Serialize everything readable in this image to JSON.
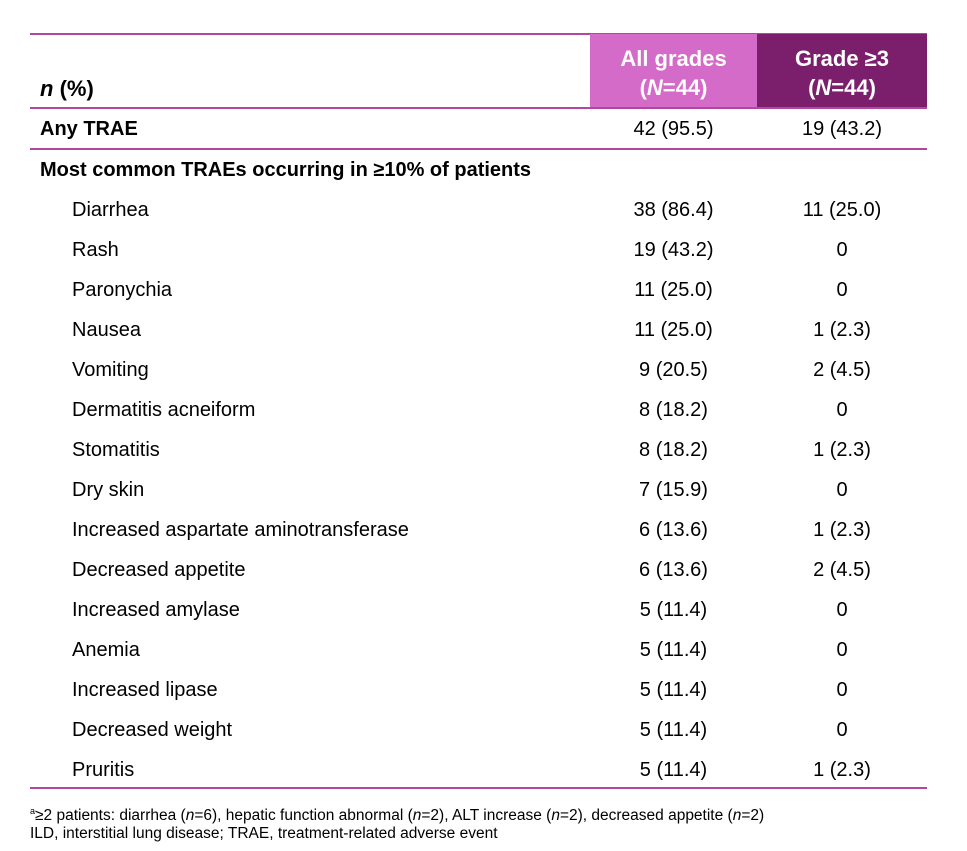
{
  "header": {
    "col0_italic": "n",
    "col0_rest": " (%)",
    "col1_line1": "All grades",
    "col1_n": "N",
    "col1_val": "=44",
    "col2_line1": "Grade ≥3",
    "col2_n": "N",
    "col2_val": "=44"
  },
  "any_trae": {
    "label": "Any TRAE",
    "all": "42 (95.5)",
    "g3": "19 (43.2)"
  },
  "section": "Most common TRAEs occurring in ≥10% of patients",
  "rows": [
    {
      "label": "Diarrhea",
      "all": "38 (86.4)",
      "g3": "11 (25.0)"
    },
    {
      "label": "Rash",
      "all": "19 (43.2)",
      "g3": "0"
    },
    {
      "label": "Paronychia",
      "all": "11 (25.0)",
      "g3": "0"
    },
    {
      "label": "Nausea",
      "all": "11 (25.0)",
      "g3": "1 (2.3)"
    },
    {
      "label": "Vomiting",
      "all": "9 (20.5)",
      "g3": "2 (4.5)"
    },
    {
      "label": "Dermatitis acneiform",
      "all": "8 (18.2)",
      "g3": "0"
    },
    {
      "label": "Stomatitis",
      "all": "8 (18.2)",
      "g3": "1 (2.3)"
    },
    {
      "label": "Dry skin",
      "all": "7 (15.9)",
      "g3": "0"
    },
    {
      "label": "Increased aspartate aminotransferase",
      "all": "6 (13.6)",
      "g3": "1 (2.3)"
    },
    {
      "label": "Decreased appetite",
      "all": "6 (13.6)",
      "g3": "2 (4.5)"
    },
    {
      "label": "Increased amylase",
      "all": "5 (11.4)",
      "g3": "0"
    },
    {
      "label": "Anemia",
      "all": "5 (11.4)",
      "g3": "0"
    },
    {
      "label": "Increased lipase",
      "all": "5 (11.4)",
      "g3": "0"
    },
    {
      "label": "Decreased weight",
      "all": "5 (11.4)",
      "g3": "0"
    },
    {
      "label": "Pruritis",
      "all": "5 (11.4)",
      "g3": "1 (2.3)"
    }
  ],
  "footnotes": {
    "sup": "a",
    "line1": [
      {
        "t": "≥2 patients: diarrhea (",
        "i": false
      },
      {
        "t": "n",
        "i": true
      },
      {
        "t": "=6), hepatic function abnormal (",
        "i": false
      },
      {
        "t": "n",
        "i": true
      },
      {
        "t": "=2), ALT increase (",
        "i": false
      },
      {
        "t": "n",
        "i": true
      },
      {
        "t": "=2), decreased appetite (",
        "i": false
      },
      {
        "t": "n",
        "i": true
      },
      {
        "t": "=2)",
        "i": false
      }
    ],
    "line2": "ILD, interstitial lung disease; TRAE, treatment-related adverse event"
  },
  "colors": {
    "all_grades_header": "#d56bc9",
    "grade3_header": "#7b1f6c",
    "rule": "#b4469f"
  }
}
